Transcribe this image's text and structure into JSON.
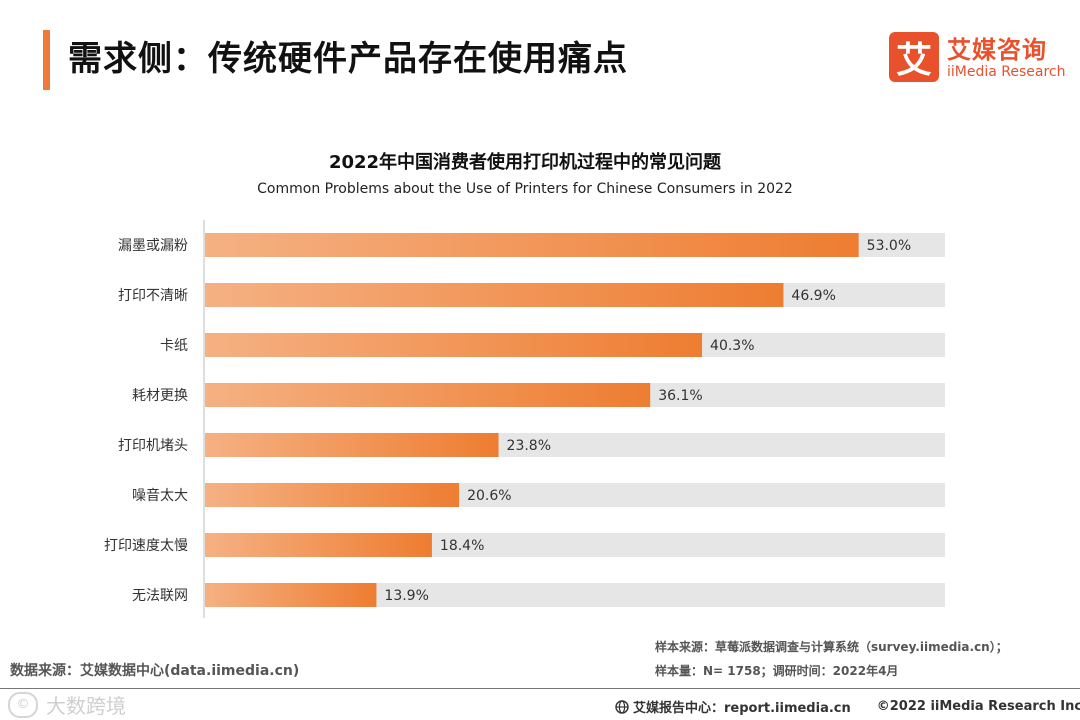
{
  "header": {
    "title": "需求侧：传统硬件产品存在使用痛点",
    "logo_mark": "艾",
    "logo_cn": "艾媒咨询",
    "logo_en": "iiMedia Research"
  },
  "colors": {
    "accent": "#f07a3a",
    "bar_start": "#f5b183",
    "bar_end": "#ee7d31",
    "track": "#e6e6e6",
    "logo": "#e8512b"
  },
  "chart_data": {
    "type": "bar",
    "orientation": "horizontal",
    "title": "2022年中国消费者使用打印机过程中的常见问题",
    "subtitle": "Common Problems about the Use of Printers for Chinese Consumers in 2022",
    "categories": [
      "漏墨或漏粉",
      "打印不清晰",
      "卡纸",
      "耗材更换",
      "打印机堵头",
      "噪音太大",
      "打印速度太慢",
      "无法联网"
    ],
    "values": [
      53.0,
      46.9,
      40.3,
      36.1,
      23.8,
      20.6,
      18.4,
      13.9
    ],
    "value_labels": [
      "53.0%",
      "46.9%",
      "40.3%",
      "36.1%",
      "23.8%",
      "20.6%",
      "18.4%",
      "13.9%"
    ],
    "unit": "%",
    "xlim": [
      0,
      60
    ],
    "xlabel": "",
    "ylabel": "",
    "legend": "none",
    "grid": false
  },
  "source": {
    "left": "数据来源：艾媒数据中心(data.iimedia.cn)",
    "sample_source": "样本来源：草莓派数据调查与计算系统（survey.iimedia.cn）；",
    "sample_size": "样本量：N= 1758；调研时间：2022年4月"
  },
  "footer": {
    "watermark": "大数跨境",
    "watermark_icon": "cc-icon",
    "report_center": "艾媒报告中心：report.iimedia.cn",
    "copyright": "©2022  iiMedia Research  Inc"
  }
}
